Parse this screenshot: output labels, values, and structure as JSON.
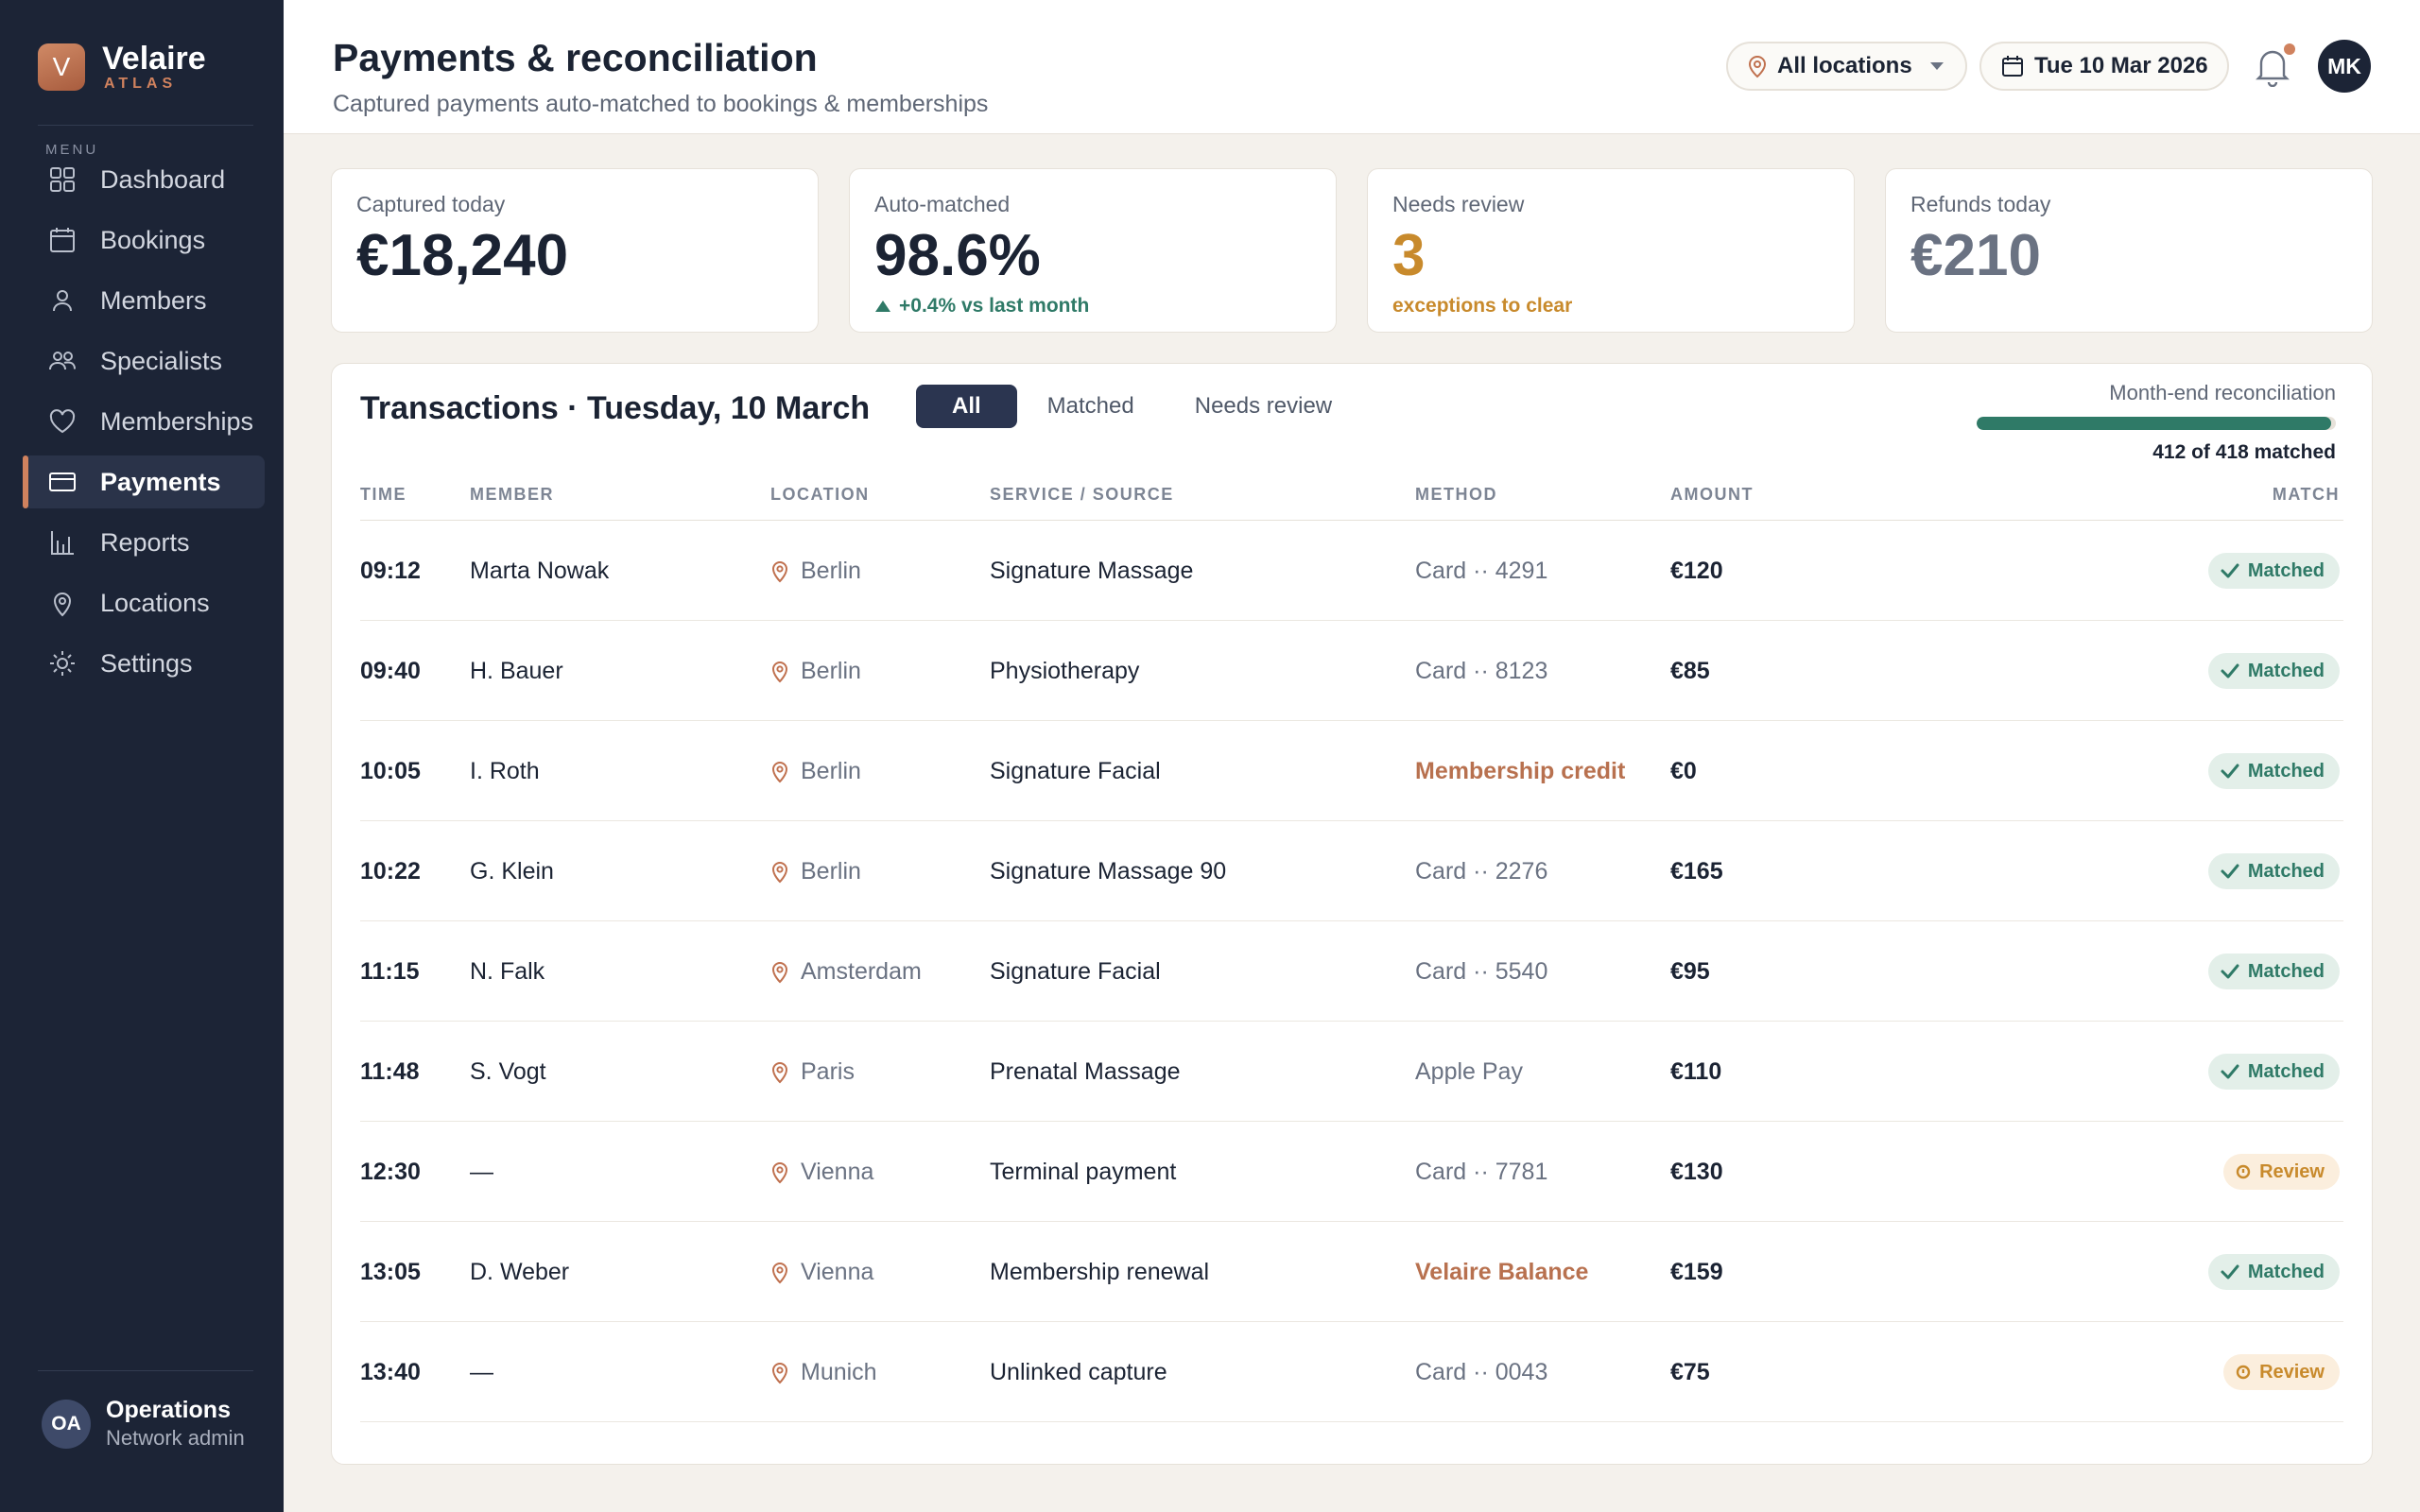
{
  "brand": {
    "name": "Velaire",
    "sub": "ATLAS",
    "mark": "V"
  },
  "sidebar": {
    "menu_label": "MENU",
    "items": [
      {
        "label": "Dashboard",
        "icon": "dashboard-icon"
      },
      {
        "label": "Bookings",
        "icon": "calendar-icon"
      },
      {
        "label": "Members",
        "icon": "user-icon"
      },
      {
        "label": "Specialists",
        "icon": "users-icon"
      },
      {
        "label": "Memberships",
        "icon": "heart-icon"
      },
      {
        "label": "Payments",
        "icon": "card-icon",
        "active": true
      },
      {
        "label": "Reports",
        "icon": "chart-icon"
      },
      {
        "label": "Locations",
        "icon": "pin-icon"
      },
      {
        "label": "Settings",
        "icon": "gear-icon"
      }
    ],
    "user": {
      "initials": "OA",
      "name": "Operations",
      "role": "Network admin"
    }
  },
  "header": {
    "title": "Payments & reconciliation",
    "subtitle": "Captured payments auto-matched to bookings & memberships",
    "location_filter": "All locations",
    "date": "Tue 10 Mar 2026",
    "user_initials": "MK"
  },
  "kpis": [
    {
      "label": "Captured today",
      "value": "€18,240",
      "note": ""
    },
    {
      "label": "Auto-matched",
      "value": "98.6%",
      "note": "+0.4% vs last month"
    },
    {
      "label": "Needs review",
      "value": "3",
      "note": "exceptions to clear"
    },
    {
      "label": "Refunds today",
      "value": "€210",
      "note": ""
    }
  ],
  "transactions": {
    "title": "Transactions · Tuesday, 10 March",
    "tabs": [
      "All",
      "Matched",
      "Needs review"
    ],
    "recon": {
      "label": "Month-end reconciliation",
      "matched": 412,
      "total": 418,
      "count_text": "412 of 418 matched"
    },
    "columns": {
      "time": "TIME",
      "member": "MEMBER",
      "location": "LOCATION",
      "service": "SERVICE / SOURCE",
      "method": "METHOD",
      "amount": "AMOUNT",
      "match": "MATCH"
    },
    "rows": [
      {
        "time": "09:12",
        "member": "Marta Nowak",
        "location": "Berlin",
        "service": "Signature Massage",
        "method": "Card ·· 4291",
        "method_special": false,
        "amount": "€120",
        "status": "Matched"
      },
      {
        "time": "09:40",
        "member": "H. Bauer",
        "location": "Berlin",
        "service": "Physiotherapy",
        "method": "Card ·· 8123",
        "method_special": false,
        "amount": "€85",
        "status": "Matched"
      },
      {
        "time": "10:05",
        "member": "I. Roth",
        "location": "Berlin",
        "service": "Signature Facial",
        "method": "Membership credit",
        "method_special": true,
        "amount": "€0",
        "status": "Matched"
      },
      {
        "time": "10:22",
        "member": "G. Klein",
        "location": "Berlin",
        "service": "Signature Massage 90",
        "method": "Card ·· 2276",
        "method_special": false,
        "amount": "€165",
        "status": "Matched"
      },
      {
        "time": "11:15",
        "member": "N. Falk",
        "location": "Amsterdam",
        "service": "Signature Facial",
        "method": "Card ·· 5540",
        "method_special": false,
        "amount": "€95",
        "status": "Matched"
      },
      {
        "time": "11:48",
        "member": "S. Vogt",
        "location": "Paris",
        "service": "Prenatal Massage",
        "method": "Apple Pay",
        "method_special": false,
        "amount": "€110",
        "status": "Matched"
      },
      {
        "time": "12:30",
        "member": "—",
        "location": "Vienna",
        "service": "Terminal payment",
        "method": "Card ·· 7781",
        "method_special": false,
        "amount": "€130",
        "status": "Review"
      },
      {
        "time": "13:05",
        "member": "D. Weber",
        "location": "Vienna",
        "service": "Membership renewal",
        "method": "Velaire Balance",
        "method_special": true,
        "amount": "€159",
        "status": "Matched"
      },
      {
        "time": "13:40",
        "member": "—",
        "location": "Munich",
        "service": "Unlinked capture",
        "method": "Card ·· 0043",
        "method_special": false,
        "amount": "€75",
        "status": "Review"
      }
    ]
  },
  "colors": {
    "sidebar": "#1c2436",
    "accent": "#d0825e",
    "matched": "#2f7a67",
    "review": "#c88a2c"
  }
}
